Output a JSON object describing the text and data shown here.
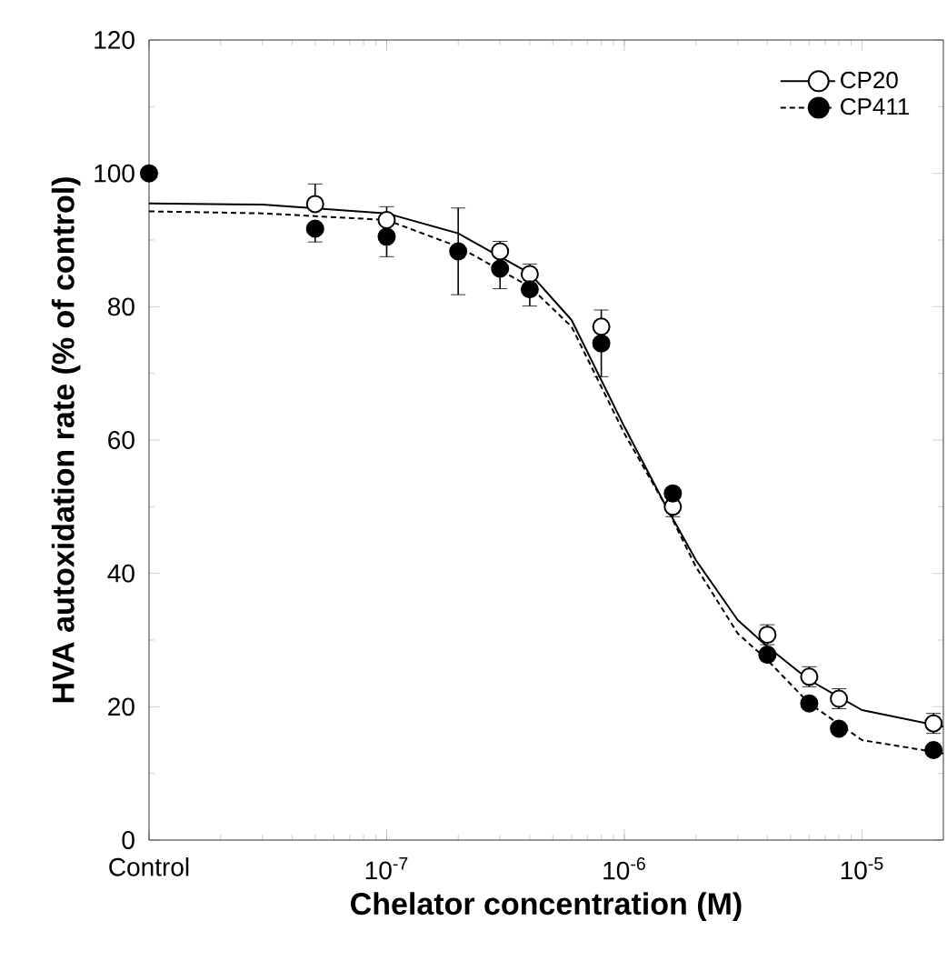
{
  "chart_data": {
    "type": "scatter",
    "xlabel": "Chelator concentration (M)",
    "ylabel": "HVA autoxidation rate (% of control)",
    "log": "x",
    "legend": "top right",
    "grid": false,
    "xlim": [
      1e-08,
      2.2e-05
    ],
    "xticks": [
      {
        "value": 1e-08,
        "label": "Control"
      },
      {
        "value": 1e-07,
        "label": "10$^{-7}$"
      },
      {
        "value": 1e-06,
        "label": "10$^{-6}$"
      },
      {
        "value": 1e-05,
        "label": "10$^{-5}$"
      }
    ],
    "ylim": [
      0,
      120
    ],
    "yticks": [
      0,
      20,
      40,
      60,
      80,
      100,
      120
    ],
    "series": [
      {
        "name": "CP20",
        "marker": "circle",
        "color": "#ffffff",
        "line_style": "solid",
        "x": [
          5e-08,
          1e-07,
          3e-07,
          4e-07,
          8e-07,
          1.6e-06,
          4e-06,
          6e-06,
          8e-06,
          2e-05
        ],
        "values": [
          95.4,
          93,
          88.3,
          84.9,
          77,
          50,
          30.8,
          24.5,
          21.2,
          17.5
        ],
        "errors": [
          [
            95.4,
            98.4
          ],
          [
            93,
            95
          ],
          [
            88.3,
            89.8
          ],
          [
            84.9,
            86.4
          ],
          [
            77,
            79.5
          ],
          1.5,
          1.5,
          1.5,
          1.5,
          1.5
        ]
      },
      {
        "name": "CP411",
        "marker": "circle",
        "color": "#000000",
        "line_style": "dotted",
        "x": [
          1e-08,
          5e-08,
          1e-07,
          2e-07,
          3e-07,
          4e-07,
          8e-07,
          1.6e-06,
          4e-06,
          6e-06,
          8e-06,
          2e-05
        ],
        "values": [
          100,
          91.7,
          90.5,
          88.3,
          85.7,
          82.6,
          74.5,
          52,
          27.8,
          20.5,
          16.7,
          13.5
        ],
        "errors": [
          null,
          [
            89.7,
            91.7
          ],
          [
            87.5,
            90.5
          ],
          6.5,
          [
            82.7,
            85.7
          ],
          [
            80.1,
            82.6
          ],
          [
            69.5,
            74.5
          ],
          null,
          null,
          null,
          null,
          null
        ]
      },
      {
        "type": "line",
        "color": "#000000",
        "line_style": "solid",
        "marker": "none",
        "x": [
          1e-08,
          3e-08,
          1e-07,
          2e-07,
          4e-07,
          6e-07,
          1e-06,
          1.5e-06,
          2e-06,
          3e-06,
          4e-06,
          6e-06,
          1e-05,
          2.2e-05
        ],
        "values": [
          95.5,
          95.3,
          94,
          91,
          85,
          78,
          62,
          50,
          42,
          33,
          29,
          24,
          19.5,
          17
        ]
      },
      {
        "type": "line",
        "color": "#000000",
        "line_style": "dotted",
        "marker": "none",
        "x": [
          1e-08,
          3e-08,
          1e-07,
          2e-07,
          4e-07,
          6e-07,
          1e-06,
          1.5e-06,
          2e-06,
          3e-06,
          4e-06,
          6e-06,
          1e-05,
          2.2e-05
        ],
        "values": [
          94.3,
          94,
          93,
          89,
          83,
          77,
          61,
          50,
          41,
          31,
          27,
          20.5,
          15,
          13
        ]
      }
    ]
  }
}
